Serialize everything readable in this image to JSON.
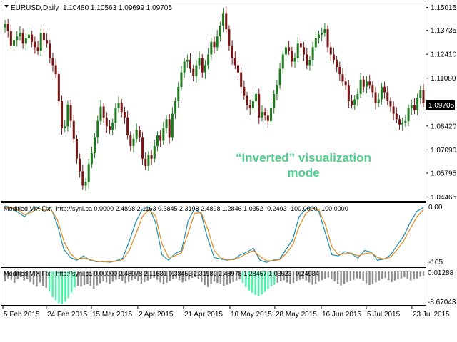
{
  "main": {
    "symbol_line": "EURUSD,Daily",
    "ohlc": "1.10480 1.10563 1.09699 1.09705",
    "price_ticks": [
      "1.15015",
      "1.13735",
      "1.12410",
      "1.11080",
      "1.09705",
      "1.08420",
      "1.07090",
      "1.05795",
      "1.04465"
    ],
    "current_price": "1.09705",
    "overlay_line1": "“Inverted” visualization",
    "overlay_line2": "mode",
    "overlay_color": "#4ccf8c",
    "bull_color": "#1e7a1e",
    "bear_color": "#7a1414"
  },
  "vix_lines": {
    "label": "Modified VIX Fix - http://syni.ca 0.0000 2.4898 2.1163 0.3845 2.3198 2.4898 1.2846 1.0352 -0.2493 -100.0000 -100.0000",
    "top_value": "0.00",
    "bottom_value": "-105",
    "line1_color": "#1e8fb0",
    "line2_color": "#e08a1e"
  },
  "vix_hist": {
    "label": "Modified VIX Fix - http://syni.ca 0.00000 2.48978 2.11631 0.38452 2.31980 2.48978 1.28457 1.03523 -0.24934",
    "top_value": "0.01288",
    "bottom_value": "-8.67043",
    "gray_color": "#8c8c8c",
    "green_color": "#4bf2a6"
  },
  "x_axis": [
    "5 Feb 2015",
    "24 Feb 2015",
    "15 Mar 2015",
    "2 Apr 2015",
    "21 Apr 2015",
    "10 May 2015",
    "28 May 2015",
    "16 Jun 2015",
    "5 Jul 2015",
    "23 Jul 2015"
  ],
  "chart_data": [
    {
      "type": "candlestick",
      "symbol": "EURUSD",
      "timeframe": "Daily",
      "ylim": [
        1.0425,
        1.1535
      ],
      "close": [
        1.141,
        1.137,
        1.129,
        1.132,
        1.134,
        1.136,
        1.13,
        1.133,
        1.135,
        1.131,
        1.128,
        1.126,
        1.136,
        1.132,
        1.13,
        1.122,
        1.118,
        1.113,
        1.098,
        1.083,
        1.084,
        1.096,
        1.087,
        1.077,
        1.066,
        1.059,
        1.051,
        1.053,
        1.063,
        1.069,
        1.078,
        1.087,
        1.095,
        1.089,
        1.084,
        1.082,
        1.086,
        1.094,
        1.097,
        1.092,
        1.089,
        1.079,
        1.073,
        1.077,
        1.082,
        1.078,
        1.066,
        1.062,
        1.068,
        1.066,
        1.073,
        1.079,
        1.076,
        1.083,
        1.088,
        1.078,
        1.091,
        1.098,
        1.106,
        1.114,
        1.12,
        1.121,
        1.116,
        1.112,
        1.118,
        1.122,
        1.114,
        1.118,
        1.124,
        1.131,
        1.128,
        1.134,
        1.14,
        1.147,
        1.138,
        1.129,
        1.122,
        1.118,
        1.114,
        1.106,
        1.101,
        1.096,
        1.094,
        1.098,
        1.102,
        1.089,
        1.092,
        1.09,
        1.087,
        1.094,
        1.102,
        1.107,
        1.116,
        1.124,
        1.128,
        1.126,
        1.12,
        1.122,
        1.13,
        1.128,
        1.124,
        1.118,
        1.121,
        1.128,
        1.133,
        1.135,
        1.136,
        1.138,
        1.128,
        1.124,
        1.121,
        1.117,
        1.113,
        1.109,
        1.107,
        1.098,
        1.096,
        1.099,
        1.102,
        1.11,
        1.106,
        1.109,
        1.107,
        1.103,
        1.097,
        1.099,
        1.106,
        1.103,
        1.098,
        1.095,
        1.091,
        1.088,
        1.085,
        1.086,
        1.087,
        1.094,
        1.096,
        1.093,
        1.1,
        1.104,
        1.097
      ]
    },
    {
      "type": "line",
      "title": "Modified VIX Fix",
      "ylim": [
        -105,
        0
      ],
      "series": [
        {
          "values": [
            0,
            -4,
            -12,
            -20,
            -8,
            -2,
            -10,
            -3,
            -35,
            -80,
            -95,
            -100,
            -92,
            -100,
            -103,
            -102,
            -104,
            -101,
            -96,
            -65,
            -30,
            -6,
            -2,
            -30,
            -90,
            -100,
            -88,
            -82,
            -28,
            -5,
            -15,
            -60,
            -95,
            -98,
            -100,
            -98,
            -90,
            -85,
            -78,
            -100,
            -104,
            -100,
            -98,
            -80,
            -62,
            -20,
            -6,
            -2,
            -10,
            -50,
            -90,
            -92,
            -84,
            -88,
            -96,
            -82,
            -85,
            -100,
            -98,
            -90,
            -72,
            -55,
            -30,
            -10,
            -3
          ]
        },
        {
          "values": [
            -2,
            -3,
            -8,
            -16,
            -12,
            -5,
            -8,
            -6,
            -25,
            -65,
            -88,
            -98,
            -96,
            -99,
            -102,
            -103,
            -103,
            -102,
            -99,
            -82,
            -52,
            -20,
            -7,
            -18,
            -70,
            -95,
            -92,
            -86,
            -50,
            -14,
            -12,
            -42,
            -82,
            -96,
            -99,
            -99,
            -94,
            -88,
            -82,
            -93,
            -101,
            -101,
            -99,
            -88,
            -72,
            -38,
            -14,
            -5,
            -7,
            -35,
            -75,
            -90,
            -88,
            -87,
            -92,
            -88,
            -86,
            -95,
            -98,
            -94,
            -80,
            -64,
            -42,
            -20,
            -7
          ]
        }
      ]
    },
    {
      "type": "bar",
      "title": "Modified VIX Fix",
      "ylim": [
        -8.67043,
        0.01288
      ],
      "values": [
        -2.6,
        -1.8,
        -2.2,
        -3.0,
        -2.1,
        -1.5,
        -2.4,
        -2.0,
        -2.8,
        -3.5,
        -4.0,
        -2.9,
        -3.8,
        -4.3,
        -5.2,
        -6.8,
        -7.6,
        -8.4,
        -8.6,
        -8.0,
        -7.0,
        -5.5,
        -4.2,
        -3.8,
        -4.0,
        -3.6,
        -3.4,
        -3.9,
        -4.6,
        -3.7,
        -3.1,
        -2.6,
        -2.9,
        -3.3,
        -2.7,
        -2.2,
        -1.9,
        -2.5,
        -3.1,
        -2.8,
        -2.3,
        -1.9,
        -2.6,
        -3.2,
        -2.8,
        -2.4,
        -2.0,
        -1.6,
        -2.2,
        -2.9,
        -3.4,
        -3.0,
        -2.5,
        -2.1,
        -1.8,
        -2.3,
        -2.9,
        -2.6,
        -2.2,
        -1.7,
        -1.5,
        -2.0,
        -2.8,
        -3.6,
        -4.1,
        -3.3,
        -2.7,
        -3.0,
        -3.4,
        -3.8,
        -3.5,
        -3.1,
        -2.8,
        -2.4,
        -2.1,
        -3.0,
        -4.2,
        -5.0,
        -5.6,
        -6.2,
        -6.6,
        -6.1,
        -5.4,
        -4.6,
        -3.9,
        -3.5,
        -3.0,
        -2.6,
        -2.3,
        -2.9,
        -3.4,
        -3.0,
        -2.6,
        -2.2,
        -1.9,
        -2.4,
        -2.9,
        -3.5,
        -3.2,
        -2.7,
        -2.3,
        -2.0,
        -1.6,
        -2.1,
        -2.6,
        -3.2,
        -3.7,
        -3.3,
        -2.8,
        -2.5,
        -2.2,
        -1.8,
        -2.0,
        -2.5,
        -3.1,
        -3.6,
        -3.3,
        -2.9,
        -2.4,
        -2.0,
        -1.7,
        -2.3,
        -2.8,
        -2.4,
        -2.1,
        -1.8,
        -1.5,
        -2.0,
        -2.4,
        -2.1,
        -1.8,
        -1.4,
        -1.1
      ],
      "highlight_ranges": [
        [
          14,
          22
        ],
        [
          75,
          85
        ]
      ]
    }
  ]
}
